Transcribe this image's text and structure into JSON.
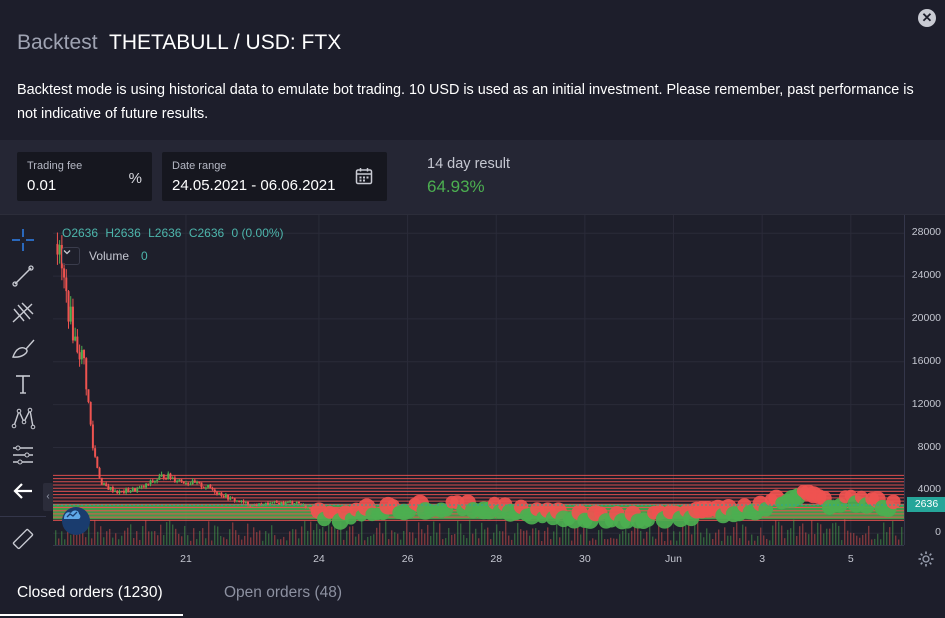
{
  "header": {
    "title_prefix": "Backtest",
    "title_main": "THETABULL / USD: FTX",
    "close_icon": "close-icon",
    "description": "Backtest mode is using historical data to emulate bot trading. 10 USD is used as an initial investment. Please remember, past performance is not indicative of future results."
  },
  "controls": {
    "trading_fee": {
      "label": "Trading fee",
      "value": "0.01",
      "suffix": "%"
    },
    "date_range": {
      "label": "Date range",
      "value": "24.05.2021 - 06.06.2021",
      "icon": "calendar-icon"
    },
    "result": {
      "label": "14 day result",
      "value": "64.93%"
    }
  },
  "chart": {
    "legend": {
      "open": "O2636",
      "high": "H2636",
      "low": "L2636",
      "close": "C2636",
      "change": "0 (0.00%)"
    },
    "volume_label": "Volume",
    "volume_value": "0",
    "current_price": "2636",
    "colors": {
      "up": "#4caf50",
      "down": "#ef5350",
      "grid_line": "#ef5350",
      "band": "#4caf50",
      "marker": "#26a69a"
    },
    "toolbar_icons": [
      "crosshair-icon",
      "trendline-icon",
      "pitchfork-icon",
      "brush-icon",
      "text-icon",
      "pattern-icon",
      "measure-icon",
      "back-arrow-icon",
      "ruler-icon"
    ]
  },
  "chart_data": {
    "type": "candlestick",
    "price_axis_ticks": [
      "28000",
      "24000",
      "20000",
      "16000",
      "12000",
      "8000",
      "4000",
      "0"
    ],
    "price_axis_values": [
      28000,
      24000,
      20000,
      16000,
      12000,
      8000,
      4000,
      0
    ],
    "ylim": [
      -1100,
      29700
    ],
    "time_axis_ticks": [
      "21",
      "24",
      "26",
      "28",
      "30",
      "Jun",
      "3",
      "5"
    ],
    "time_axis_days": [
      21,
      24,
      26,
      28,
      30,
      32,
      34,
      36
    ],
    "xlim": [
      18,
      37.2
    ],
    "grid_levels": [
      5400,
      5100,
      4800,
      4500,
      4200,
      3900,
      3600,
      3300,
      3000,
      2700,
      2400,
      2100,
      1800,
      1500,
      1200
    ],
    "band_range": [
      1300,
      2700
    ],
    "current_price": 2636,
    "price_path": [
      [
        18.1,
        27000
      ],
      [
        18.3,
        22000
      ],
      [
        18.5,
        18000
      ],
      [
        18.7,
        16000
      ],
      [
        18.9,
        8000
      ],
      [
        19.1,
        4500
      ],
      [
        19.5,
        3800
      ],
      [
        20.0,
        4200
      ],
      [
        20.5,
        5400
      ],
      [
        21.0,
        4800
      ],
      [
        21.5,
        4300
      ],
      [
        22.0,
        3200
      ],
      [
        22.5,
        2600
      ],
      [
        23.0,
        2800
      ],
      [
        23.5,
        2900
      ],
      [
        24.0,
        1800
      ],
      [
        24.5,
        1500
      ],
      [
        25.0,
        2100
      ],
      [
        26.0,
        2400
      ],
      [
        27.0,
        2600
      ],
      [
        28.0,
        2500
      ],
      [
        29.0,
        1900
      ],
      [
        30.0,
        1600
      ],
      [
        31.0,
        1500
      ],
      [
        32.0,
        1700
      ],
      [
        33.0,
        2000
      ],
      [
        34.0,
        2500
      ],
      [
        34.8,
        3800
      ],
      [
        35.5,
        2800
      ],
      [
        36.0,
        3200
      ],
      [
        36.5,
        2900
      ],
      [
        37.0,
        2600
      ]
    ]
  },
  "tabs": [
    {
      "label": "Closed orders (1230)"
    },
    {
      "label": "Open orders (48)"
    }
  ]
}
